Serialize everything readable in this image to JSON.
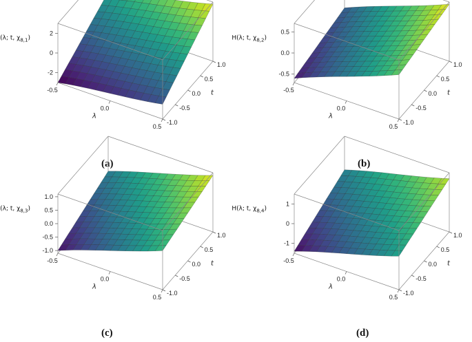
{
  "chart_data": [
    {
      "type": "surface",
      "panel": "(a)",
      "title": "",
      "zlabel_text": "H(λ; t, χ",
      "zlabel_sub": "8,1",
      "xlabel": "λ",
      "ylabel": "t",
      "x_ticks": [
        "-0.5",
        "0.0",
        "0.5"
      ],
      "y_ticks": [
        "-1.0",
        "-0.5",
        "0.0",
        "0.5",
        "1.0"
      ],
      "z_ticks": [
        "2",
        "0",
        "-2"
      ],
      "xlim": [
        -0.5,
        0.5
      ],
      "ylim": [
        -1.0,
        1.0
      ],
      "zlim": [
        -3,
        3
      ],
      "surface_corners": {
        "x_-0.5_t_-1.0": -3.0,
        "x_0.5_t_-1.0": -1.5,
        "x_-0.5_t_1.0": 0.3,
        "x_0.5_t_1.0": 2.8
      }
    },
    {
      "type": "surface",
      "panel": "(b)",
      "title": "",
      "zlabel_text": "H(λ; t, χ",
      "zlabel_sub": "8,2",
      "xlabel": "λ",
      "ylabel": "t",
      "x_ticks": [
        "-0.5",
        "0.0",
        "0.5"
      ],
      "y_ticks": [
        "-1.0",
        "-0.5",
        "0.0",
        "0.5",
        "1.0"
      ],
      "z_ticks": [
        "0.5",
        "0.0",
        "-0.5"
      ],
      "xlim": [
        -0.5,
        0.5
      ],
      "ylim": [
        -1.0,
        1.0
      ],
      "zlim": [
        -0.7,
        0.7
      ],
      "surface_corners": {
        "x_-0.5_t_-1.0": -0.6,
        "x_0.5_t_-1.0": 0.35,
        "x_-0.5_t_1.0": -0.3,
        "x_0.5_t_1.0": 0.65
      }
    },
    {
      "type": "surface",
      "panel": "(c)",
      "title": "",
      "zlabel_text": "H(λ; t, χ",
      "zlabel_sub": "8,3",
      "xlabel": "λ",
      "ylabel": "t",
      "x_ticks": [
        "-0.5",
        "0.0",
        "0.5"
      ],
      "y_ticks": [
        "-1.0",
        "-0.5",
        "0.0",
        "0.5",
        "1.0"
      ],
      "z_ticks": [
        "1.0",
        "0.5",
        "0.0",
        "-0.5",
        "-1.0"
      ],
      "xlim": [
        -0.5,
        0.5
      ],
      "ylim": [
        -1.0,
        1.0
      ],
      "zlim": [
        -1.1,
        1.1
      ],
      "surface_corners": {
        "x_-0.5_t_-1.0": -1.0,
        "x_0.5_t_-1.0": 0.35,
        "x_-0.5_t_1.0": -0.2,
        "x_0.5_t_1.0": 1.0
      }
    },
    {
      "type": "surface",
      "panel": "(d)",
      "title": "",
      "zlabel_text": "H(λ; t, χ",
      "zlabel_sub": "8,4",
      "xlabel": "λ",
      "ylabel": "t",
      "x_ticks": [
        "-0.5",
        "0.0",
        "0.5"
      ],
      "y_ticks": [
        "-1.0",
        "-0.5",
        "0.0",
        "0.5",
        "1.0"
      ],
      "z_ticks": [
        "1",
        "0",
        "-1"
      ],
      "xlim": [
        -0.5,
        0.5
      ],
      "ylim": [
        -1.0,
        1.0
      ],
      "zlim": [
        -1.5,
        1.5
      ],
      "surface_corners": {
        "x_-0.5_t_-1.0": -1.4,
        "x_0.5_t_-1.0": 0.2,
        "x_-0.5_t_1.0": -0.2,
        "x_0.5_t_1.0": 1.2
      }
    }
  ]
}
